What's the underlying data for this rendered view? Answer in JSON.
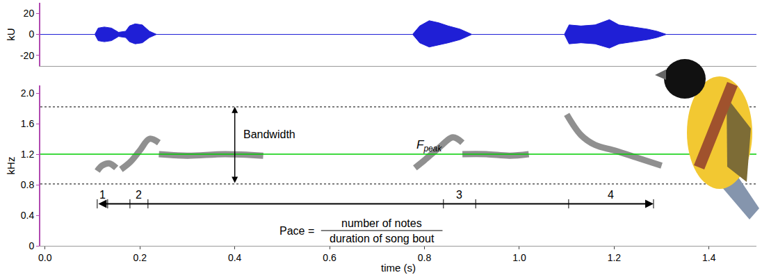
{
  "chart_data": [
    {
      "type": "area",
      "ylabel": "kU",
      "xlim": [
        -0.01,
        1.5
      ],
      "ylim": [
        -30,
        30
      ],
      "yticks": [
        -20,
        0,
        20
      ],
      "tick_labels": "y",
      "color": "#1f1fd6",
      "x": [
        -0.01,
        0.105,
        0.112,
        0.125,
        0.14,
        0.155,
        0.17,
        0.178,
        0.19,
        0.205,
        0.22,
        0.235,
        0.775,
        0.79,
        0.81,
        0.83,
        0.85,
        0.875,
        0.9,
        1.095,
        1.105,
        1.13,
        1.16,
        1.19,
        1.21,
        1.24,
        1.27,
        1.29,
        1.31,
        1.5
      ],
      "upper": [
        0,
        0,
        6,
        7,
        6,
        2,
        3,
        8,
        10,
        9,
        3,
        0,
        0,
        8,
        13,
        11,
        8,
        5,
        0,
        0,
        9,
        8,
        9,
        14,
        9,
        7,
        5,
        3,
        0,
        0
      ],
      "lower": [
        0,
        0,
        -6,
        -7,
        -6,
        -2,
        -3,
        -7,
        -9,
        -8,
        -3,
        0,
        0,
        -8,
        -12,
        -10,
        -8,
        -5,
        0,
        0,
        -9,
        -8,
        -9,
        -13,
        -9,
        -7,
        -5,
        -3,
        0,
        0
      ]
    },
    {
      "type": "line",
      "xlabel": "time (s)",
      "ylabel": "kHz",
      "xlim": [
        -0.01,
        1.5
      ],
      "xticks": [
        {
          "value": 0,
          "label": "0.0"
        },
        0.2,
        0.4,
        0.6,
        0.8,
        {
          "value": 1,
          "label": "1.0"
        },
        1.2,
        1.4
      ],
      "ylim": [
        0,
        2.1
      ],
      "yticks": [
        0,
        0.4,
        0.8,
        1.2,
        1.6,
        {
          "value": 2,
          "label": "2.0"
        }
      ],
      "color": "#555555",
      "series": [
        {
          "x": [
            0.11,
            0.12,
            0.135,
            0.15
          ],
          "values": [
            0.98,
            1.05,
            1.08,
            1.02
          ]
        },
        {
          "x": [
            0.16,
            0.18,
            0.2,
            0.22,
            0.24
          ],
          "values": [
            1.0,
            1.1,
            1.25,
            1.4,
            1.35
          ]
        },
        {
          "x": [
            0.24,
            0.3,
            0.38,
            0.46
          ],
          "values": [
            1.2,
            1.18,
            1.2,
            1.18
          ]
        },
        {
          "x": [
            0.78,
            0.8,
            0.83,
            0.86,
            0.88
          ],
          "values": [
            1.02,
            1.12,
            1.28,
            1.42,
            1.35
          ]
        },
        {
          "x": [
            0.88,
            0.93,
            0.98,
            1.02
          ],
          "values": [
            1.2,
            1.2,
            1.18,
            1.2
          ]
        },
        {
          "x": [
            1.1,
            1.13,
            1.16,
            1.2,
            1.25,
            1.3
          ],
          "values": [
            1.72,
            1.45,
            1.32,
            1.25,
            1.15,
            1.05
          ]
        }
      ],
      "reference_lines": [
        {
          "y": 1.2,
          "color": "#00cc00",
          "line_style": "solid",
          "label": {
            "text": "F",
            "subscript": "peak",
            "x": 0.81,
            "y": 1.31
          }
        },
        {
          "y": 0.81,
          "color": "#333333",
          "line_style": "dotted"
        },
        {
          "y": 1.82,
          "color": "#333333",
          "line_style": "dotted"
        }
      ],
      "bandwidth": {
        "text": "Bandwidth",
        "x": 0.4,
        "from": 0.81,
        "to": 1.82
      },
      "notes": [
        {
          "label": "1",
          "start": 0.11,
          "end": 0.132
        },
        {
          "label": "2",
          "start": 0.179,
          "end": 0.217
        },
        {
          "label": "3",
          "start": 0.84,
          "end": 0.908
        },
        {
          "label": "4",
          "start": 1.104,
          "end": 1.283
        }
      ],
      "bout": {
        "start": 0.11,
        "end": 1.283,
        "y": 0.55
      },
      "formula": {
        "lhs": "Pace =",
        "numerator": "number of notes",
        "denominator": "duration of song bout",
        "x": 0.71,
        "y": 0.2
      }
    }
  ]
}
